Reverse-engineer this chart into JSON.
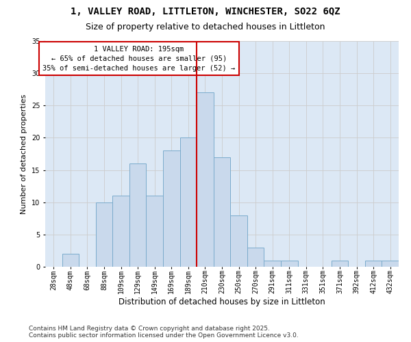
{
  "title": "1, VALLEY ROAD, LITTLETON, WINCHESTER, SO22 6QZ",
  "subtitle": "Size of property relative to detached houses in Littleton",
  "xlabel": "Distribution of detached houses by size in Littleton",
  "ylabel": "Number of detached properties",
  "categories": [
    "28sqm",
    "48sqm",
    "68sqm",
    "88sqm",
    "109sqm",
    "129sqm",
    "149sqm",
    "169sqm",
    "189sqm",
    "210sqm",
    "230sqm",
    "250sqm",
    "270sqm",
    "291sqm",
    "311sqm",
    "331sqm",
    "351sqm",
    "371sqm",
    "392sqm",
    "412sqm",
    "432sqm"
  ],
  "values": [
    0,
    2,
    0,
    10,
    11,
    16,
    11,
    18,
    20,
    27,
    17,
    8,
    3,
    1,
    1,
    0,
    0,
    1,
    0,
    1,
    1
  ],
  "bar_color": "#c9d9ec",
  "bar_edge_color": "#7aabcc",
  "grid_color": "#cccccc",
  "background_color": "#dce8f5",
  "annotation_box_color": "#cc0000",
  "vline_color": "#cc0000",
  "vline_index": 9,
  "property_label": "1 VALLEY ROAD: 195sqm",
  "annotation_line1": "← 65% of detached houses are smaller (95)",
  "annotation_line2": "35% of semi-detached houses are larger (52) →",
  "ylim": [
    0,
    35
  ],
  "yticks": [
    0,
    5,
    10,
    15,
    20,
    25,
    30,
    35
  ],
  "footer": "Contains HM Land Registry data © Crown copyright and database right 2025.\nContains public sector information licensed under the Open Government Licence v3.0.",
  "title_fontsize": 10,
  "subtitle_fontsize": 9,
  "xlabel_fontsize": 8.5,
  "ylabel_fontsize": 8,
  "tick_fontsize": 7,
  "annotation_fontsize": 7.5,
  "footer_fontsize": 6.5
}
